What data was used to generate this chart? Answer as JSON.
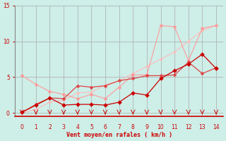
{
  "title": "",
  "xlabel": "Vent moyen/en rafales ( km/h )",
  "ylabel": "",
  "xlim": [
    -0.5,
    14.5
  ],
  "ylim": [
    -0.5,
    15
  ],
  "xticks": [
    0,
    1,
    2,
    3,
    4,
    5,
    6,
    7,
    8,
    9,
    10,
    11,
    12,
    13,
    14
  ],
  "yticks": [
    0,
    5,
    10,
    15
  ],
  "background_color": "#ceeee8",
  "grid_color": "#aaaaaa",
  "line_pink_high": {
    "x": [
      0,
      1,
      2,
      3,
      4,
      5,
      6,
      7,
      8,
      9,
      10,
      11,
      12,
      13,
      14
    ],
    "y": [
      5.2,
      4.0,
      3.0,
      2.6,
      2.0,
      2.6,
      2.0,
      3.6,
      5.3,
      5.3,
      12.2,
      12.0,
      7.3,
      11.8,
      12.2
    ],
    "color": "#ff9999",
    "lw": 0.8,
    "marker": "D",
    "ms": 2.5
  },
  "line_pink_low": {
    "x": [
      0,
      1,
      2,
      3,
      4,
      5,
      6,
      7,
      8,
      9,
      10,
      11,
      12,
      13,
      14
    ],
    "y": [
      0.0,
      0.5,
      1.5,
      1.8,
      2.8,
      2.9,
      3.9,
      4.5,
      5.5,
      6.5,
      7.5,
      8.5,
      10.0,
      11.5,
      12.2
    ],
    "color": "#ffbbbb",
    "lw": 0.8,
    "marker": "D",
    "ms": 2.0
  },
  "line_red_upper": {
    "x": [
      0,
      1,
      2,
      3,
      4,
      5,
      6,
      7,
      8,
      9,
      10,
      11,
      12,
      13,
      14
    ],
    "y": [
      0.1,
      1.2,
      2.1,
      2.0,
      3.8,
      3.6,
      3.8,
      4.5,
      4.8,
      5.2,
      5.2,
      5.3,
      7.1,
      5.5,
      6.3
    ],
    "color": "#dd4444",
    "lw": 0.9,
    "marker": "D",
    "ms": 2.5
  },
  "line_red_lower": {
    "x": [
      0,
      1,
      2,
      3,
      4,
      5,
      6,
      7,
      8,
      9,
      10,
      11,
      12,
      13,
      14
    ],
    "y": [
      0.1,
      1.1,
      2.1,
      1.1,
      1.2,
      1.2,
      1.1,
      1.5,
      2.8,
      2.5,
      4.8,
      5.9,
      6.8,
      8.2,
      6.2
    ],
    "color": "#cc0000",
    "lw": 0.9,
    "marker": "D",
    "ms": 3.0
  }
}
